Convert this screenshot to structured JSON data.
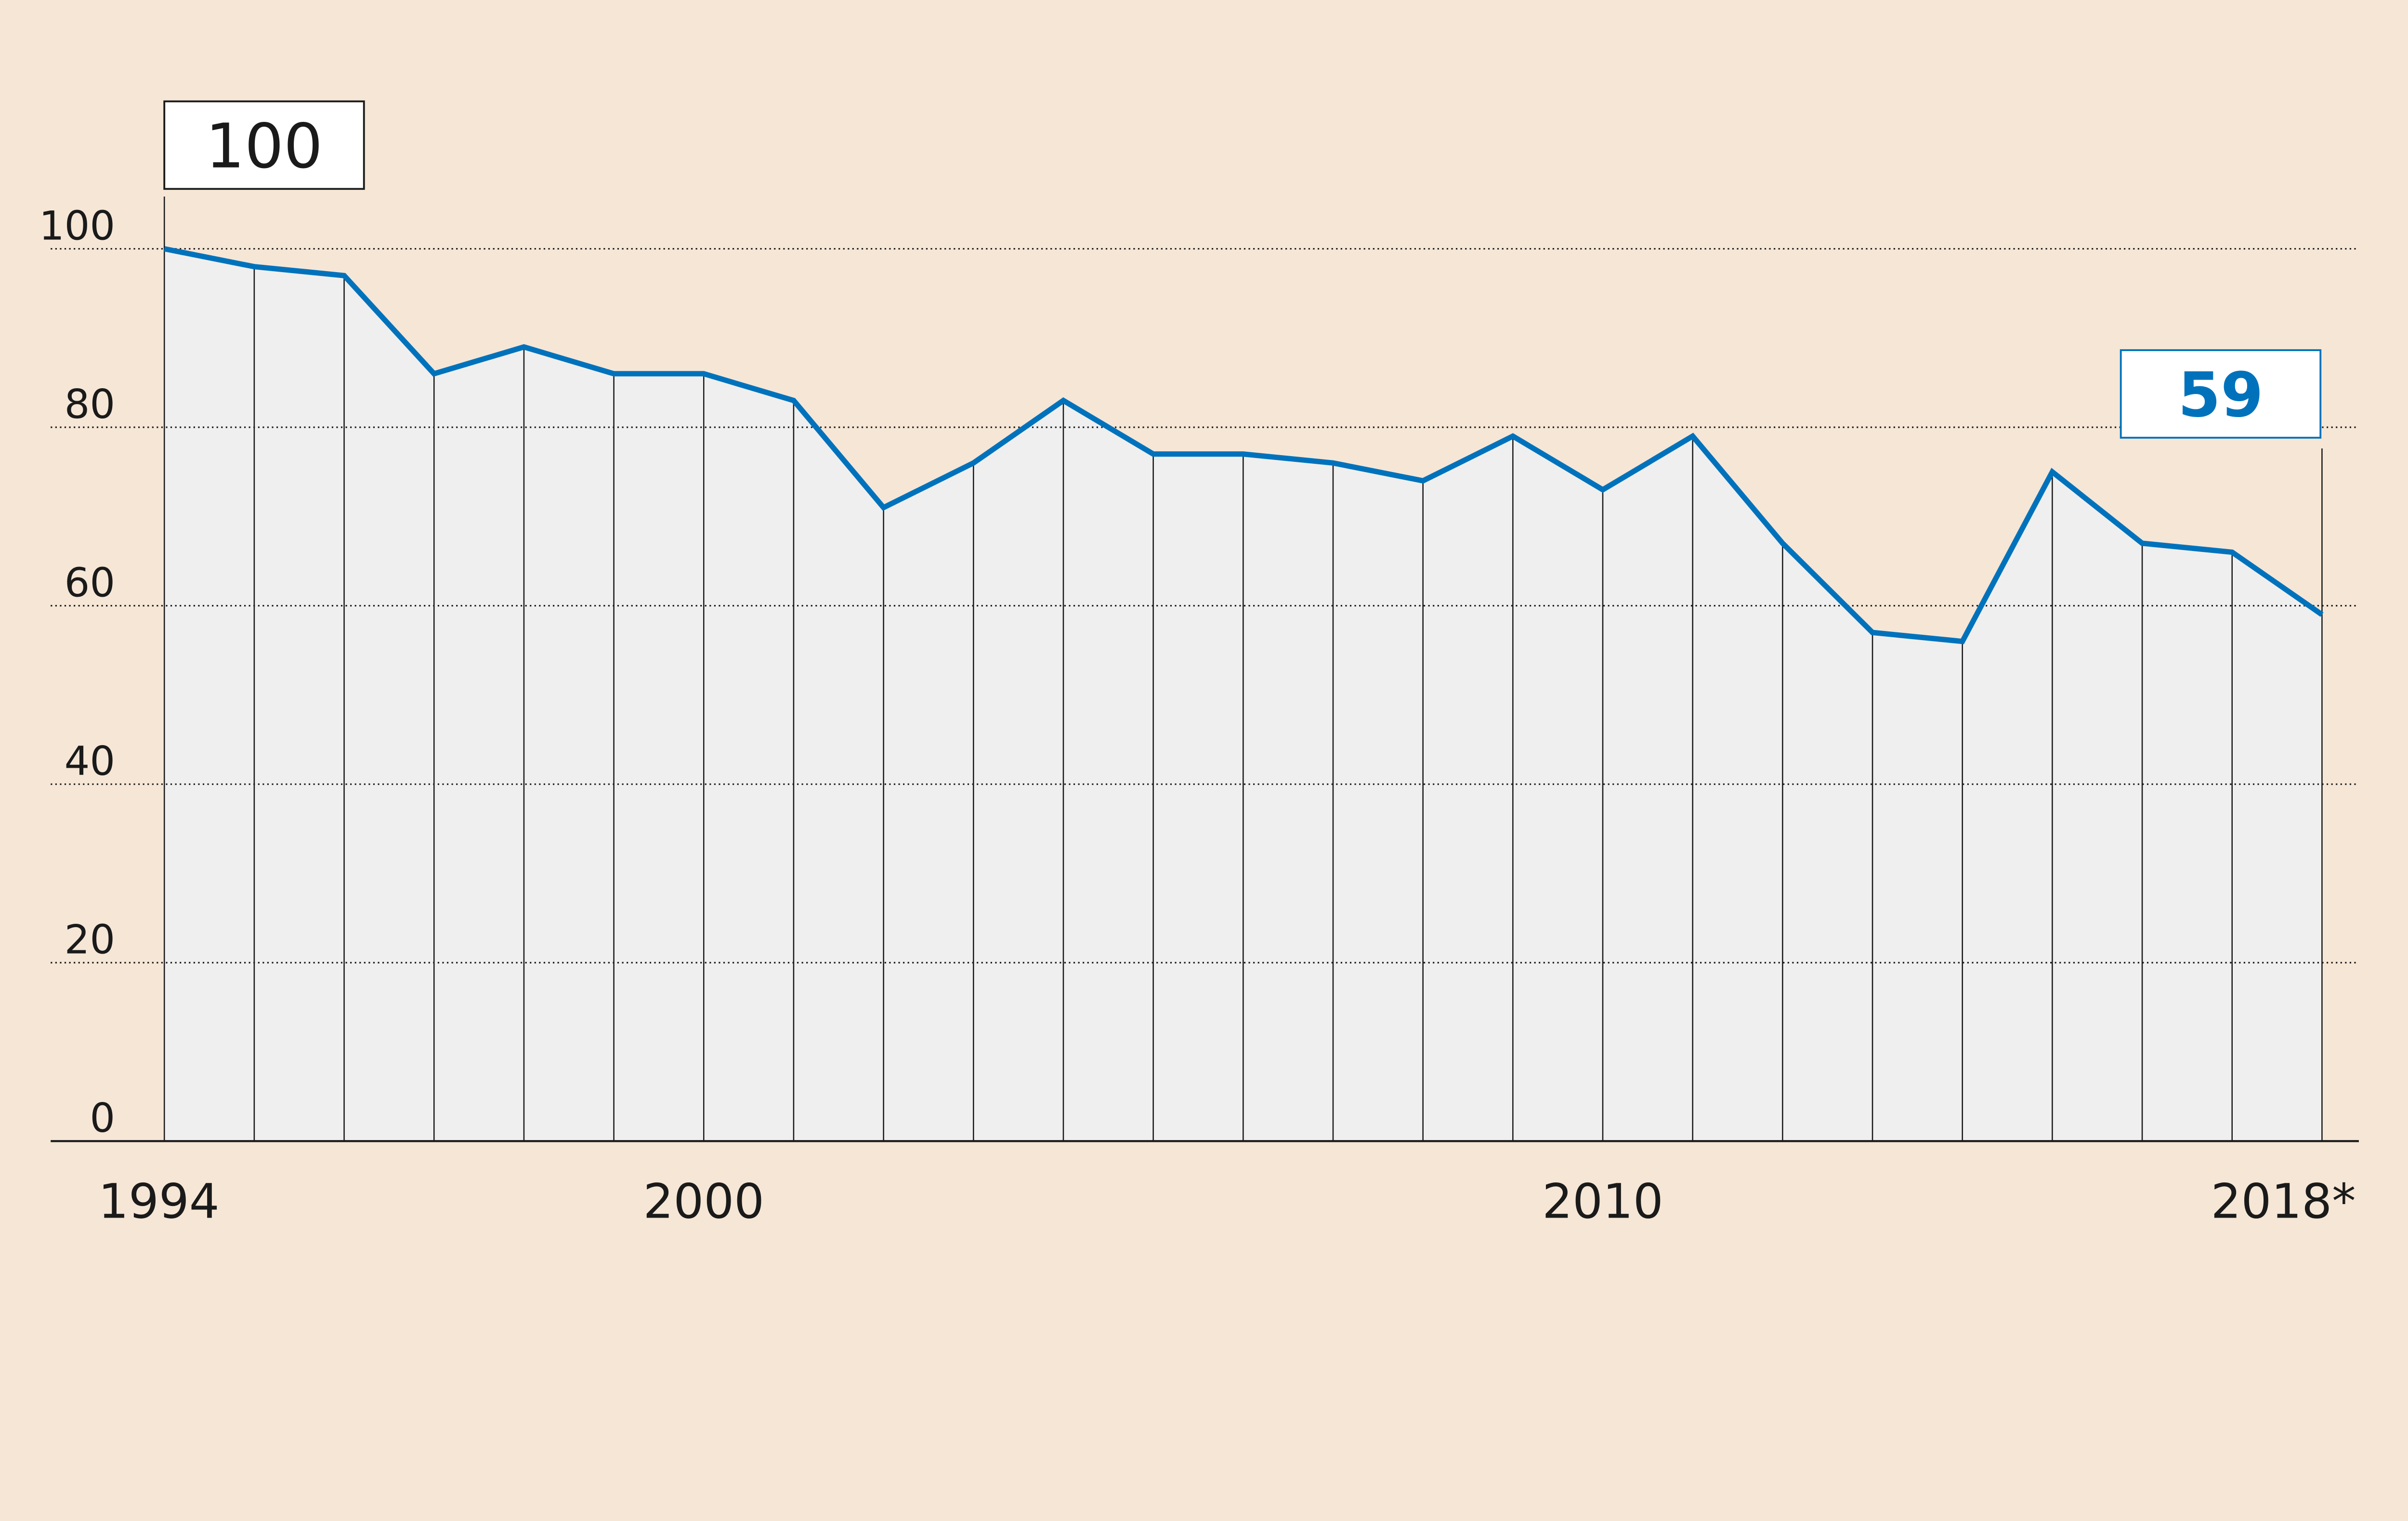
{
  "chart_data": {
    "type": "area",
    "title": "",
    "xlabel": "",
    "ylabel": "",
    "x": [
      1994,
      1995,
      1996,
      1997,
      1998,
      1999,
      2000,
      2001,
      2002,
      2003,
      2004,
      2005,
      2006,
      2007,
      2008,
      2009,
      2010,
      2011,
      2012,
      2013,
      2014,
      2015,
      2016,
      2017,
      2018
    ],
    "values": [
      100,
      98,
      97,
      86,
      89,
      86,
      86,
      83,
      71,
      76,
      83,
      77,
      77,
      76,
      74,
      79,
      73,
      79,
      67,
      57,
      56,
      75,
      67,
      66,
      59
    ],
    "ylim": [
      0,
      100
    ],
    "yticks": [
      "0",
      "20",
      "40",
      "60",
      "80",
      "100"
    ],
    "xtick_labels": [
      {
        "year": 1994,
        "label": "1994"
      },
      {
        "year": 2000,
        "label": "2000"
      },
      {
        "year": 2010,
        "label": "2010"
      },
      {
        "year": 2018,
        "label": "2018*"
      }
    ],
    "grid": "horizontal dotted",
    "annotations": [
      {
        "year": 1994,
        "label": "100"
      },
      {
        "year": 2018,
        "label": "59"
      }
    ],
    "colors": {
      "line": "#0072bc",
      "fill": "#efefef",
      "background": "#f5e6d6",
      "text": "#1a1a1a"
    }
  }
}
